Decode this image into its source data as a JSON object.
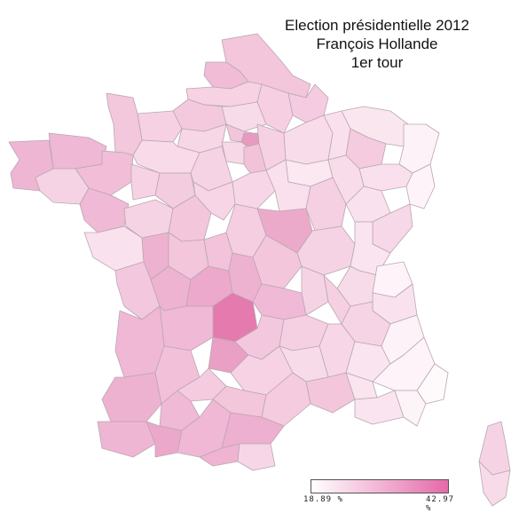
{
  "title": {
    "line1": "Election présidentielle 2012",
    "line2": "François Hollande",
    "line3": "1er tour"
  },
  "legend": {
    "min_label": "18.89 %",
    "max_label": "42.97 %",
    "min_color": "#ffffff",
    "max_color": "#e56aa8"
  },
  "colors": {
    "border": "#b9a7b1",
    "region_border": "#9a8a93"
  },
  "scale": {
    "min": 18.89,
    "max": 42.97
  }
}
